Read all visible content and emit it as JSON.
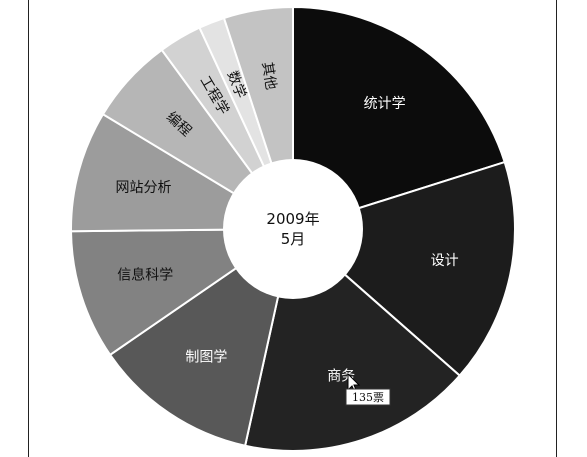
{
  "chart_data": {
    "type": "pie",
    "style": "donut",
    "center_label": [
      "2009年",
      "5月"
    ],
    "categories": [
      "统计学",
      "设计",
      "商务",
      "制图学",
      "信息科学",
      "网站分析",
      "编程",
      "工程学",
      "数学",
      "其他"
    ],
    "values": [
      160,
      130,
      135,
      95,
      75,
      70,
      50,
      25,
      15,
      40
    ],
    "colors": [
      "#0c0c0c",
      "#1c1c1c",
      "#232323",
      "#585858",
      "#828282",
      "#9c9c9c",
      "#b6b6b6",
      "#d2d2d2",
      "#e3e3e3",
      "#c3c3c3"
    ],
    "label_colors": [
      "#ffffff",
      "#ffffff",
      "#ffffff",
      "#ffffff",
      "#111111",
      "#111111",
      "#111111",
      "#111111",
      "#111111",
      "#111111"
    ],
    "tooltip": {
      "category": "商务",
      "text": "135票"
    }
  }
}
